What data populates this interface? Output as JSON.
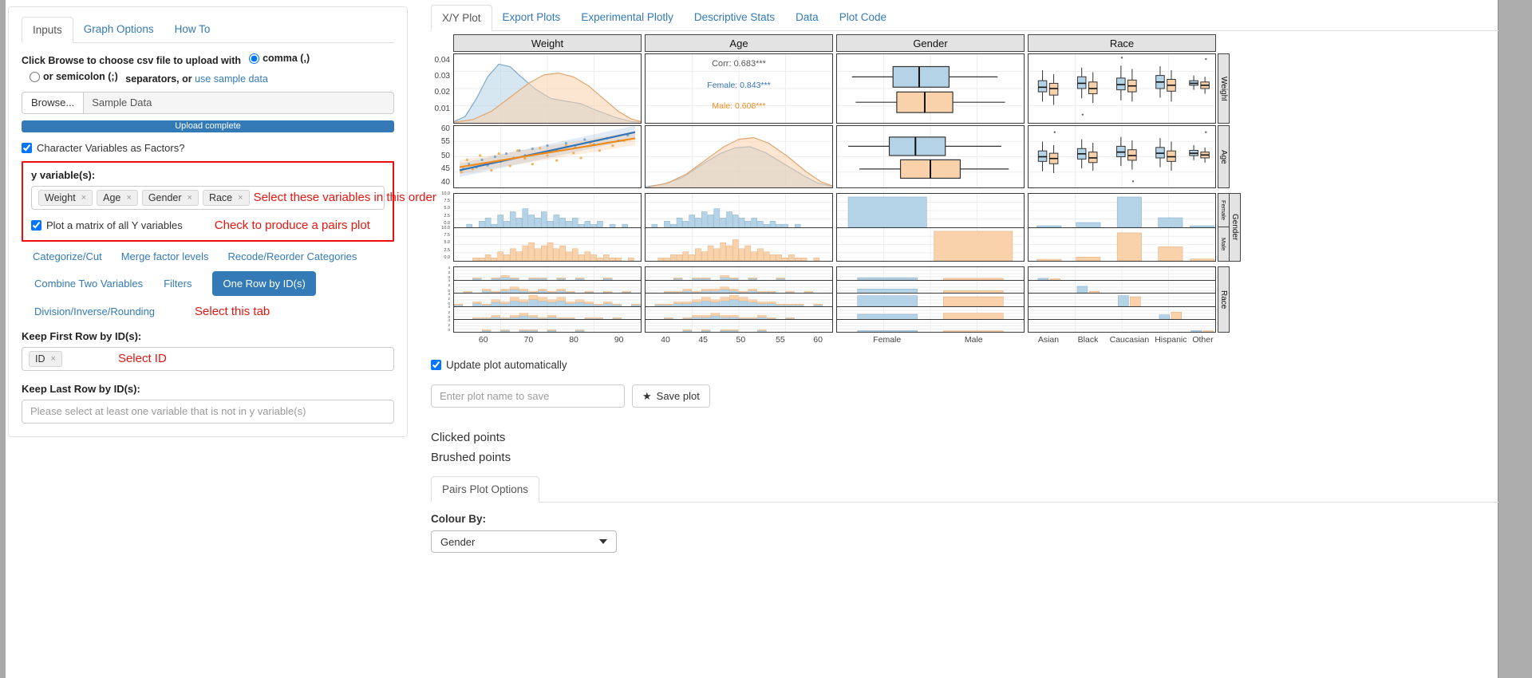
{
  "ui": {
    "icons": {
      "remove": "×",
      "star": "★"
    },
    "colors": {
      "accent_blue": "#337ab7",
      "annotation_red": "#e8160e",
      "red_box_border": "#f20d0d"
    }
  },
  "left_panel": {
    "tabs": [
      {
        "label": "Inputs",
        "active": true
      },
      {
        "label": "Graph Options",
        "active": false
      },
      {
        "label": "How To",
        "active": false
      }
    ],
    "upload": {
      "instruction_prefix": "Click Browse to choose csv file to upload with",
      "radio_comma": "comma (,)",
      "radio_semicolon": "or semicolon (;)",
      "instruction_suffix": "separators, or",
      "sample_link": "use sample data",
      "browse_button": "Browse...",
      "file_label": "Sample Data",
      "progress": "Upload complete"
    },
    "factors_checkbox": "Character Variables as Factors?",
    "y_variables": {
      "label": "y variable(s):",
      "tags": [
        "Weight",
        "Age",
        "Gender",
        "Race"
      ],
      "annotation": "Select these variables in this order"
    },
    "matrix_checkbox": {
      "label": "Plot a matrix of all Y variables",
      "annotation": "Check to produce a pairs plot"
    },
    "tool_tabs": {
      "items_row1": [
        "Categorize/Cut",
        "Merge factor levels",
        "Recode/Reorder Categories"
      ],
      "items_row2": [
        "Combine Two Variables",
        "Filters"
      ],
      "active": "One Row by ID(s)",
      "items_row3": [
        "Division/Inverse/Rounding"
      ],
      "annotation": "Select this tab"
    },
    "keep_first": {
      "label": "Keep First Row by ID(s):",
      "tag": "ID",
      "annotation": "Select ID"
    },
    "keep_last": {
      "label": "Keep Last Row by ID(s):",
      "placeholder": "Please select at least one variable that is not in y variable(s)"
    }
  },
  "right_panel": {
    "tabs": [
      {
        "label": "X/Y Plot",
        "active": true
      },
      {
        "label": "Export Plots",
        "active": false
      },
      {
        "label": "Experimental Plotly",
        "active": false
      },
      {
        "label": "Descriptive Stats",
        "active": false
      },
      {
        "label": "Data",
        "active": false
      },
      {
        "label": "Plot Code",
        "active": false
      }
    ],
    "update_checkbox": "Update plot automatically",
    "save": {
      "placeholder": "Enter plot name to save",
      "button": "Save plot"
    },
    "clicked_points": "Clicked points",
    "brushed_points": "Brushed points",
    "pairs_tab": "Pairs Plot Options",
    "colour_by_label": "Colour By:",
    "colour_by_value": "Gender"
  },
  "chart_data": {
    "type": "pairs-matrix",
    "variables": [
      "Weight",
      "Age",
      "Gender",
      "Race"
    ],
    "groups": [
      "Female",
      "Male"
    ],
    "colors": {
      "female_fill": "#b5d3e7",
      "male_fill": "#f9d2ac",
      "female_stroke": "#7fa8c9",
      "male_stroke": "#dfa670",
      "female_line": "#3273b5",
      "male_line": "#ef8a1c",
      "female_point": "#6fa3d2",
      "male_point": "#f5a94f",
      "grid": "#ededed",
      "panel_border": "#3a3a3a",
      "strip_bg": "#e3e3e3",
      "corr_text": "#555555"
    },
    "correlations": {
      "overall": "Corr: 0.683***",
      "female": "Female: 0.843***",
      "male": "Male: 0.608***"
    },
    "axes": {
      "row_ticks": [
        [
          "0.04",
          "0.03",
          "0.02",
          "0.01"
        ],
        [
          "60",
          "55",
          "50",
          "45",
          "40"
        ],
        [
          "10.0",
          "7.5",
          "5.0",
          "2.5",
          "0.0"
        ],
        [
          "4",
          "2",
          "0"
        ]
      ],
      "row_tick_fracs": [
        [
          0.1,
          0.33,
          0.56,
          0.79
        ],
        [
          0.06,
          0.27,
          0.49,
          0.7,
          0.91
        ],
        [
          0.04,
          0.25,
          0.46,
          0.67,
          0.88
        ],
        [
          0.08,
          0.45,
          0.82
        ]
      ],
      "col_ticks": [
        [
          "60",
          "70",
          "80",
          "90"
        ],
        [
          "40",
          "45",
          "50",
          "55",
          "60"
        ],
        [
          "Female",
          "Male"
        ],
        [
          "Asian",
          "Black",
          "Caucasian",
          "Hispanic",
          "Other"
        ]
      ],
      "col_tick_fracs": [
        [
          0.16,
          0.4,
          0.64,
          0.88
        ],
        [
          0.11,
          0.31,
          0.51,
          0.72,
          0.92
        ],
        [
          0.27,
          0.73
        ],
        [
          0.11,
          0.32,
          0.54,
          0.76,
          0.93
        ]
      ]
    },
    "densities": {
      "weight_female": [
        [
          0,
          0.02
        ],
        [
          0.06,
          0.1
        ],
        [
          0.12,
          0.38
        ],
        [
          0.18,
          0.72
        ],
        [
          0.24,
          0.92
        ],
        [
          0.3,
          0.88
        ],
        [
          0.36,
          0.72
        ],
        [
          0.44,
          0.52
        ],
        [
          0.52,
          0.38
        ],
        [
          0.6,
          0.34
        ],
        [
          0.68,
          0.3
        ],
        [
          0.76,
          0.2
        ],
        [
          0.86,
          0.09
        ],
        [
          0.95,
          0.02
        ],
        [
          1,
          0.01
        ]
      ],
      "weight_male": [
        [
          0,
          0.01
        ],
        [
          0.1,
          0.05
        ],
        [
          0.2,
          0.18
        ],
        [
          0.3,
          0.4
        ],
        [
          0.4,
          0.62
        ],
        [
          0.48,
          0.75
        ],
        [
          0.56,
          0.78
        ],
        [
          0.64,
          0.72
        ],
        [
          0.72,
          0.58
        ],
        [
          0.8,
          0.38
        ],
        [
          0.88,
          0.18
        ],
        [
          0.95,
          0.06
        ],
        [
          1,
          0.02
        ]
      ],
      "age_female": [
        [
          0,
          0.01
        ],
        [
          0.1,
          0.06
        ],
        [
          0.2,
          0.18
        ],
        [
          0.3,
          0.4
        ],
        [
          0.4,
          0.6
        ],
        [
          0.48,
          0.7
        ],
        [
          0.56,
          0.72
        ],
        [
          0.64,
          0.62
        ],
        [
          0.74,
          0.42
        ],
        [
          0.84,
          0.22
        ],
        [
          0.92,
          0.08
        ],
        [
          1,
          0.02
        ]
      ],
      "age_male": [
        [
          0.02,
          0.01
        ],
        [
          0.12,
          0.08
        ],
        [
          0.22,
          0.24
        ],
        [
          0.32,
          0.48
        ],
        [
          0.42,
          0.72
        ],
        [
          0.5,
          0.85
        ],
        [
          0.58,
          0.88
        ],
        [
          0.66,
          0.78
        ],
        [
          0.76,
          0.55
        ],
        [
          0.86,
          0.28
        ],
        [
          0.94,
          0.1
        ],
        [
          1,
          0.03
        ]
      ]
    },
    "scatter": {
      "female_points": [
        [
          0.05,
          0.3
        ],
        [
          0.08,
          0.38
        ],
        [
          0.12,
          0.33
        ],
        [
          0.15,
          0.45
        ],
        [
          0.18,
          0.36
        ],
        [
          0.22,
          0.5
        ],
        [
          0.25,
          0.42
        ],
        [
          0.28,
          0.55
        ],
        [
          0.32,
          0.48
        ],
        [
          0.35,
          0.6
        ],
        [
          0.38,
          0.52
        ],
        [
          0.42,
          0.63
        ],
        [
          0.45,
          0.55
        ],
        [
          0.5,
          0.68
        ],
        [
          0.55,
          0.6
        ],
        [
          0.6,
          0.72
        ],
        [
          0.65,
          0.65
        ],
        [
          0.7,
          0.78
        ],
        [
          0.75,
          0.7
        ],
        [
          0.82,
          0.8
        ],
        [
          0.88,
          0.76
        ],
        [
          0.93,
          0.85
        ]
      ],
      "male_points": [
        [
          0.04,
          0.25
        ],
        [
          0.07,
          0.45
        ],
        [
          0.1,
          0.3
        ],
        [
          0.14,
          0.52
        ],
        [
          0.17,
          0.38
        ],
        [
          0.2,
          0.28
        ],
        [
          0.24,
          0.55
        ],
        [
          0.27,
          0.44
        ],
        [
          0.3,
          0.35
        ],
        [
          0.34,
          0.6
        ],
        [
          0.38,
          0.47
        ],
        [
          0.42,
          0.38
        ],
        [
          0.46,
          0.64
        ],
        [
          0.5,
          0.52
        ],
        [
          0.55,
          0.44
        ],
        [
          0.6,
          0.68
        ],
        [
          0.64,
          0.56
        ],
        [
          0.68,
          0.48
        ],
        [
          0.73,
          0.72
        ],
        [
          0.78,
          0.6
        ],
        [
          0.85,
          0.68
        ],
        [
          0.91,
          0.76
        ]
      ],
      "female_line": [
        [
          0.03,
          0.28
        ],
        [
          0.97,
          0.9
        ]
      ],
      "male_line": [
        [
          0.03,
          0.33
        ],
        [
          0.97,
          0.8
        ]
      ]
    },
    "boxplots": {
      "weight_gender": {
        "female": {
          "cy": 0.33,
          "lo": 0.08,
          "q1": 0.3,
          "med": 0.44,
          "q3": 0.6,
          "hi": 0.86
        },
        "male": {
          "cy": 0.7,
          "lo": 0.1,
          "q1": 0.32,
          "med": 0.47,
          "q3": 0.62,
          "hi": 0.9
        }
      },
      "age_gender": {
        "female": {
          "cy": 0.33,
          "lo": 0.06,
          "q1": 0.28,
          "med": 0.42,
          "q3": 0.58,
          "hi": 0.88
        },
        "male": {
          "cy": 0.7,
          "lo": 0.12,
          "q1": 0.34,
          "med": 0.5,
          "q3": 0.66,
          "hi": 0.92
        }
      },
      "weight_race": [
        [
          0.075,
          "f",
          0.3,
          0.45,
          0.52,
          0.62,
          0.78
        ],
        [
          0.135,
          "m",
          0.25,
          0.4,
          0.5,
          0.58,
          0.72
        ],
        [
          0.285,
          "f",
          0.35,
          0.5,
          0.58,
          0.68,
          0.82
        ],
        [
          0.345,
          "m",
          0.28,
          0.42,
          0.5,
          0.6,
          0.75
        ],
        [
          0.495,
          "f",
          0.32,
          0.48,
          0.56,
          0.66,
          0.85
        ],
        [
          0.555,
          "m",
          0.3,
          0.45,
          0.54,
          0.63,
          0.8
        ],
        [
          0.705,
          "f",
          0.36,
          0.5,
          0.6,
          0.7,
          0.84
        ],
        [
          0.765,
          "m",
          0.3,
          0.46,
          0.55,
          0.64,
          0.78
        ],
        [
          0.885,
          "f",
          0.48,
          0.55,
          0.58,
          0.62,
          0.7
        ],
        [
          0.945,
          "m",
          0.42,
          0.5,
          0.55,
          0.6,
          0.68
        ]
      ],
      "age_race": [
        [
          0.075,
          "f",
          0.25,
          0.42,
          0.5,
          0.6,
          0.76
        ],
        [
          0.135,
          "m",
          0.22,
          0.38,
          0.47,
          0.56,
          0.7
        ],
        [
          0.285,
          "f",
          0.3,
          0.46,
          0.55,
          0.64,
          0.8
        ],
        [
          0.345,
          "m",
          0.26,
          0.4,
          0.48,
          0.58,
          0.74
        ],
        [
          0.495,
          "f",
          0.34,
          0.5,
          0.58,
          0.68,
          0.84
        ],
        [
          0.555,
          "m",
          0.28,
          0.44,
          0.52,
          0.62,
          0.78
        ],
        [
          0.705,
          "f",
          0.32,
          0.48,
          0.56,
          0.66,
          0.82
        ],
        [
          0.765,
          "m",
          0.26,
          0.42,
          0.5,
          0.6,
          0.76
        ],
        [
          0.885,
          "f",
          0.44,
          0.52,
          0.56,
          0.61,
          0.7
        ],
        [
          0.945,
          "m",
          0.4,
          0.48,
          0.53,
          0.58,
          0.66
        ]
      ],
      "weight_race_outliers": [
        [
          0.5,
          0.95
        ],
        [
          0.95,
          0.93
        ],
        [
          0.29,
          0.12
        ]
      ],
      "age_race_outliers": [
        [
          0.14,
          0.9
        ],
        [
          0.56,
          0.1
        ],
        [
          0.95,
          0.9
        ]
      ]
    },
    "histograms": {
      "weight_female": [
        0,
        0,
        1,
        0,
        2,
        3,
        1,
        4,
        2,
        5,
        3,
        6,
        4,
        3,
        5,
        2,
        4,
        3,
        2,
        3,
        1,
        2,
        1,
        2,
        0,
        1,
        0,
        1,
        0,
        0
      ],
      "weight_male": [
        0,
        0,
        0,
        1,
        1,
        2,
        1,
        3,
        2,
        4,
        3,
        5,
        6,
        4,
        5,
        6,
        4,
        5,
        3,
        4,
        2,
        3,
        2,
        1,
        2,
        1,
        1,
        0,
        1,
        0
      ],
      "age_female": [
        0,
        1,
        0,
        2,
        1,
        3,
        2,
        4,
        3,
        5,
        4,
        6,
        3,
        5,
        4,
        3,
        2,
        3,
        2,
        1,
        2,
        1,
        1,
        0,
        1,
        0,
        0,
        0,
        0,
        0
      ],
      "age_male": [
        0,
        0,
        1,
        1,
        2,
        2,
        3,
        2,
        4,
        3,
        5,
        4,
        6,
        5,
        7,
        4,
        5,
        3,
        4,
        3,
        2,
        2,
        1,
        2,
        1,
        1,
        0,
        1,
        0,
        0
      ],
      "weight_race": [
        [
          0,
          0,
          1,
          0,
          1,
          2,
          1,
          0,
          1,
          1,
          0,
          1,
          0,
          1,
          0,
          0,
          1,
          0,
          0,
          0
        ],
        [
          0,
          1,
          0,
          2,
          1,
          2,
          3,
          2,
          1,
          2,
          1,
          2,
          1,
          0,
          1,
          0,
          1,
          0,
          1,
          0
        ],
        [
          1,
          0,
          2,
          1,
          3,
          2,
          4,
          3,
          5,
          4,
          3,
          4,
          2,
          3,
          2,
          1,
          2,
          1,
          0,
          1
        ],
        [
          0,
          0,
          1,
          1,
          2,
          1,
          2,
          3,
          2,
          1,
          2,
          1,
          1,
          0,
          1,
          1,
          0,
          1,
          0,
          0
        ],
        [
          0,
          0,
          0,
          1,
          0,
          1,
          0,
          1,
          1,
          0,
          1,
          0,
          0,
          1,
          0,
          0,
          0,
          0,
          0,
          0
        ]
      ],
      "age_race": [
        [
          0,
          0,
          0,
          1,
          0,
          1,
          1,
          0,
          2,
          1,
          0,
          1,
          0,
          0,
          1,
          0,
          0,
          0,
          0,
          0
        ],
        [
          0,
          0,
          1,
          1,
          2,
          1,
          2,
          2,
          3,
          2,
          1,
          2,
          1,
          1,
          0,
          1,
          0,
          1,
          0,
          0
        ],
        [
          0,
          1,
          1,
          2,
          2,
          3,
          4,
          3,
          4,
          5,
          4,
          3,
          2,
          2,
          1,
          1,
          1,
          0,
          1,
          0
        ],
        [
          0,
          0,
          1,
          0,
          1,
          2,
          2,
          3,
          2,
          2,
          1,
          1,
          2,
          1,
          0,
          1,
          0,
          0,
          0,
          0
        ],
        [
          0,
          0,
          0,
          0,
          1,
          0,
          1,
          0,
          1,
          1,
          0,
          0,
          1,
          0,
          0,
          0,
          0,
          0,
          0,
          0
        ]
      ]
    },
    "bars": {
      "gender_positions": [
        0.27,
        0.73
      ],
      "race_positions": [
        0.11,
        0.32,
        0.54,
        0.76,
        0.93
      ],
      "gender_gender": {
        "female_height": 0.95,
        "male_height": 0.95
      },
      "race_gender": {
        "female": [
          0.5,
          1.5,
          9.5,
          3.0,
          0.5
        ],
        "male": [
          0.5,
          1.2,
          9.0,
          4.5,
          0.6
        ]
      },
      "gender_race": [
        [
          2,
          1.5
        ],
        [
          4,
          2.5
        ],
        [
          9.5,
          8.5
        ],
        [
          5,
          6
        ],
        [
          1.2,
          1
        ]
      ],
      "race_race": [
        [
          1.5,
          1
        ],
        [
          6.5,
          2
        ],
        [
          9.5,
          8.5
        ],
        [
          4.5,
          7
        ],
        [
          1.2,
          1
        ]
      ]
    }
  }
}
